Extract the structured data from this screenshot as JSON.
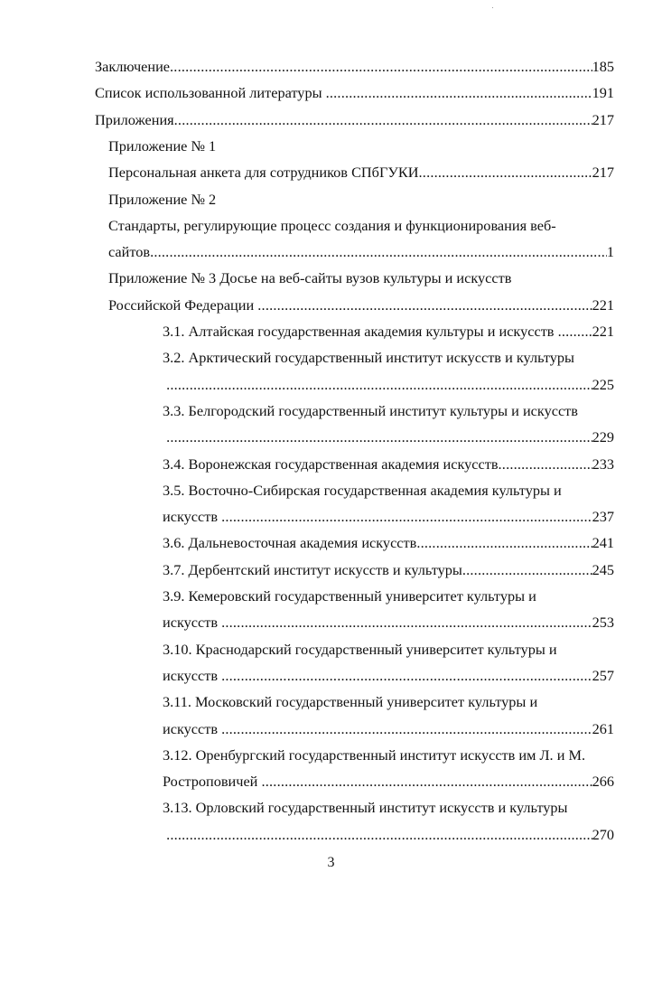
{
  "toc": [
    {
      "text": "Заключение",
      "page": "185",
      "level": 0
    },
    {
      "text": "Список использованной литературы ",
      "page": "191",
      "level": 0
    },
    {
      "text": "Приложения",
      "page": "217",
      "level": 0
    },
    {
      "text": "Приложение № 1",
      "page": "",
      "level": 1,
      "nodots": true
    },
    {
      "text": "Персональная анкета для сотрудников СПбГУКИ",
      "page": "217",
      "level": 1
    },
    {
      "text": "Приложение № 2",
      "page": "",
      "level": 1,
      "nodots": true
    },
    {
      "text": "Стандарты, регулирующие процесс создания и функционирования веб-",
      "page": "",
      "level": 1,
      "nodots": true
    },
    {
      "text": "сайтов",
      "page": "1",
      "level": 1
    },
    {
      "text": "Приложение № 3 Досье на веб-сайты вузов культуры и искусств",
      "page": "",
      "level": 1,
      "nodots": true
    },
    {
      "text": "Российской Федерации ",
      "page": "221",
      "level": 1
    },
    {
      "text": "3.1. Алтайская государственная академия культуры и искусств ",
      "page": "221",
      "level": 2
    },
    {
      "text": "3.2. Арктический государственный институт искусств и культуры",
      "page": "",
      "level": 2,
      "nodots": true
    },
    {
      "text": " ",
      "page": "225",
      "level": 2
    },
    {
      "text": "3.3. Белгородский государственный институт культуры и искусств",
      "page": "",
      "level": 2,
      "nodots": true
    },
    {
      "text": " ",
      "page": "229",
      "level": 2
    },
    {
      "text": "3.4. Воронежская государственная академия искусств",
      "page": "233",
      "level": 2
    },
    {
      "text": "3.5. Восточно-Сибирская государственная академия культуры и",
      "page": "",
      "level": 2,
      "nodots": true
    },
    {
      "text": "искусств ",
      "page": "237",
      "level": 2
    },
    {
      "text": "3.6. Дальневосточная академия искусств",
      "page": "241",
      "level": 2
    },
    {
      "text": "3.7. Дербентский институт искусств и культуры",
      "page": "245",
      "level": 2
    },
    {
      "text": "3.9. Кемеровский государственный университет культуры и",
      "page": "",
      "level": 2,
      "nodots": true
    },
    {
      "text": "искусств ",
      "page": "253",
      "level": 2
    },
    {
      "text": "3.10. Краснодарский государственный университет культуры и",
      "page": "",
      "level": 2,
      "nodots": true
    },
    {
      "text": "искусств ",
      "page": "257",
      "level": 2
    },
    {
      "text": "3.11. Московский государственный университет культуры и",
      "page": "",
      "level": 2,
      "nodots": true
    },
    {
      "text": "искусств ",
      "page": "261",
      "level": 2
    },
    {
      "text": "3.12. Оренбургский государственный институт искусств им Л. и М.",
      "page": "",
      "level": 2,
      "nodots": true
    },
    {
      "text": "Ростроповичей ",
      "page": "266",
      "level": 2
    },
    {
      "text": "3.13. Орловский государственный институт искусств и культуры",
      "page": "",
      "level": 2,
      "nodots": true
    },
    {
      "text": " ",
      "page": "270",
      "level": 2
    }
  ],
  "page_number": "3"
}
